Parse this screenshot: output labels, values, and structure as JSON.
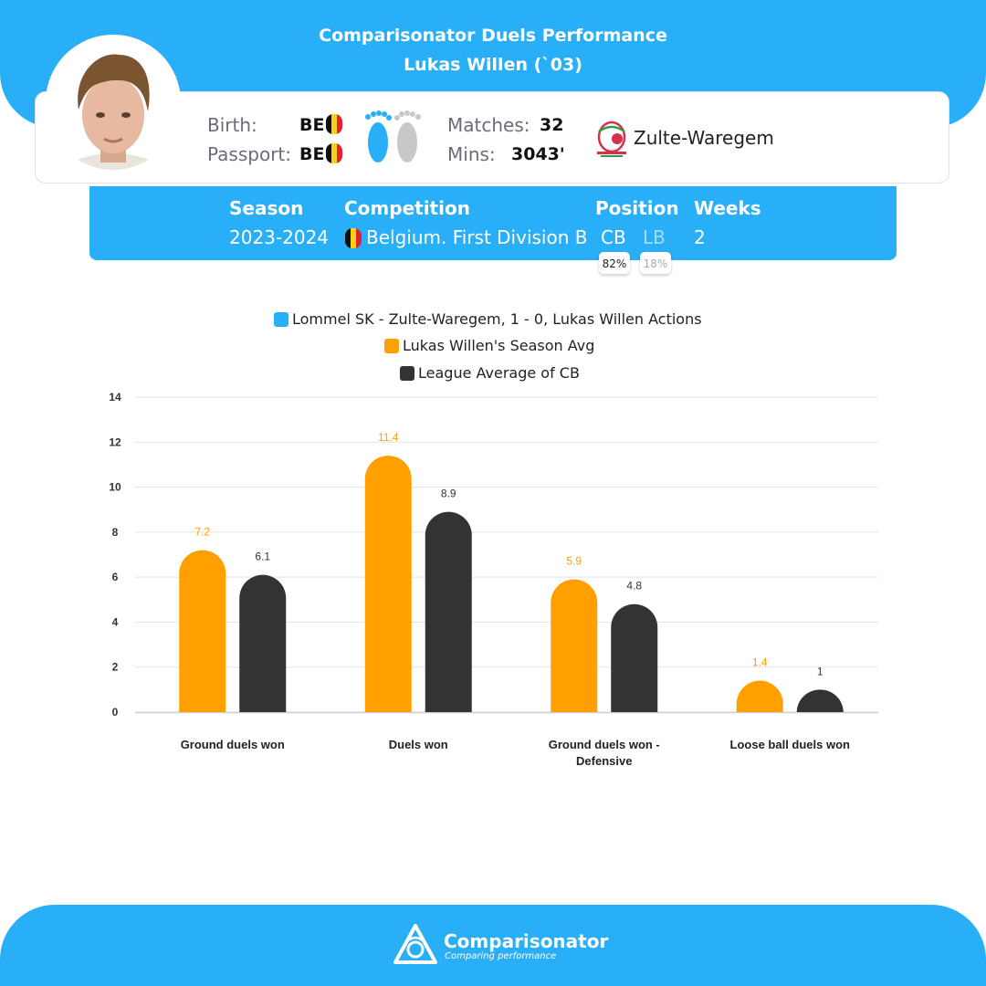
{
  "header": {
    "title_line1": "Comparisonator Duels Performance",
    "title_line2": "Lukas Willen (`03)"
  },
  "player": {
    "birth_label": "Birth:",
    "birth_value": "BE",
    "passport_label": "Passport:",
    "passport_value": "BE",
    "matches_label": "Matches:",
    "matches_value": "32",
    "mins_label": "Mins:",
    "mins_value": "3043'",
    "club": "Zulte-Waregem"
  },
  "info": {
    "season_label": "Season",
    "season_value": "2023-2024",
    "competition_label": "Competition",
    "competition_value": "Belgium. First Division B",
    "position_label": "Position",
    "positions": [
      {
        "name": "CB",
        "pct": "82%"
      },
      {
        "name": "LB",
        "pct": "18%"
      }
    ],
    "weeks_label": "Weeks",
    "weeks_value": "2"
  },
  "colors": {
    "brand_blue": "#29aef8",
    "series_season": "#ff9f00",
    "series_league": "#333333",
    "flag_black": "#111111",
    "flag_yellow": "#f7d116",
    "flag_red": "#e3232c"
  },
  "chart_data": {
    "type": "bar",
    "categories": [
      "Ground duels won",
      "Duels won",
      "Ground duels won - Defensive",
      "Loose ball duels won"
    ],
    "category_lines": [
      [
        "Ground duels won"
      ],
      [
        "Duels won"
      ],
      [
        "Ground duels won -",
        "Defensive"
      ],
      [
        "Loose ball duels won"
      ]
    ],
    "legend": [
      "Lommel SK - Zulte-Waregem, 1 - 0, Lukas Willen Actions",
      "Lukas Willen's Season Avg",
      "League Average of CB"
    ],
    "legend_placement": "top-center",
    "series": [
      {
        "name": "Lommel SK - Zulte-Waregem, 1 - 0, Lukas Willen Actions",
        "values": [
          null,
          null,
          null,
          null
        ],
        "color": "#29aef8"
      },
      {
        "name": "Lukas Willen's Season Avg",
        "values": [
          7.2,
          11.4,
          5.9,
          1.4
        ],
        "labels": [
          "7.2",
          "11.4",
          "5.9",
          "1.4"
        ],
        "color": "#ff9f00"
      },
      {
        "name": "League Average of CB",
        "values": [
          6.1,
          8.9,
          4.8,
          1
        ],
        "labels": [
          "6.1",
          "8.9",
          "4.8",
          "1"
        ],
        "color": "#333333"
      }
    ],
    "yticks": [
      "0",
      "2",
      "4",
      "6",
      "8",
      "10",
      "12",
      "14"
    ],
    "ylim": [
      0,
      14
    ],
    "grid": true
  },
  "footer": {
    "brand": "Comparisonator",
    "tagline": "Comparing performance"
  }
}
